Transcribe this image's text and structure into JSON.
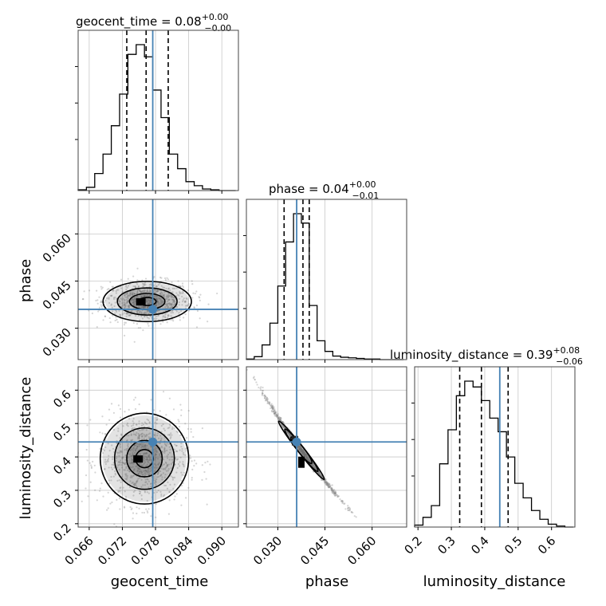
{
  "chart_data": {
    "type": "corner",
    "parameters": [
      "geocent_time",
      "phase",
      "luminosity_distance"
    ],
    "titles": [
      {
        "param": "geocent_time",
        "prefix": "geocent_time = 0.08",
        "sup": "+0.00",
        "sub": "−0.00"
      },
      {
        "param": "phase",
        "prefix": "phase = 0.04",
        "sup": "+0.00",
        "sub": "−0.01"
      },
      {
        "param": "luminosity_distance",
        "prefix": "luminosity_distance = 0.39",
        "sup": "+0.08",
        "sub": "−0.06"
      }
    ],
    "ranges": {
      "geocent_time": [
        0.064,
        0.093
      ],
      "phase": [
        0.02,
        0.071
      ],
      "luminosity_distance": [
        0.19,
        0.67
      ]
    },
    "ticks": {
      "geocent_time": [
        0.066,
        0.072,
        0.078,
        0.084,
        0.09
      ],
      "phase": [
        0.03,
        0.045,
        0.06
      ],
      "luminosity_distance": [
        0.2,
        0.3,
        0.4,
        0.5,
        0.6
      ]
    },
    "tick_labels": {
      "geocent_time": [
        "0.066",
        "0.072",
        "0.078",
        "0.084",
        "0.090"
      ],
      "phase": [
        "0.030",
        "0.045",
        "0.060"
      ],
      "luminosity_distance": [
        "0.2",
        "0.3",
        "0.4",
        "0.5",
        "0.6"
      ]
    },
    "injection": {
      "geocent_time": 0.0775,
      "phase": 0.036,
      "luminosity_distance": 0.445
    },
    "quantiles": {
      "geocent_time": [
        0.0728,
        0.0763,
        0.0803
      ],
      "phase": [
        0.032,
        0.038,
        0.04
      ],
      "luminosity_distance": [
        0.325,
        0.39,
        0.47
      ]
    },
    "histograms": {
      "geocent_time": {
        "edges": [
          0.064,
          0.0655,
          0.067,
          0.0685,
          0.07,
          0.0715,
          0.073,
          0.0745,
          0.076,
          0.0775,
          0.079,
          0.0805,
          0.082,
          0.0835,
          0.085,
          0.0865,
          0.088,
          0.0895,
          0.091,
          0.0925
        ],
        "counts": [
          1,
          4,
          21,
          45,
          80,
          119,
          168,
          180,
          165,
          124,
          90,
          45,
          27,
          11,
          6,
          2,
          1,
          0,
          0
        ]
      },
      "phase": {
        "edges": [
          0.02,
          0.0225,
          0.025,
          0.0275,
          0.03,
          0.0325,
          0.035,
          0.0375,
          0.04,
          0.0425,
          0.045,
          0.0475,
          0.05,
          0.0525,
          0.055,
          0.0575,
          0.06,
          0.0625,
          0.065,
          0.0675,
          0.07
        ],
        "counts": [
          1,
          5,
          25,
          62,
          125,
          200,
          248,
          232,
          92,
          32,
          14,
          6,
          4,
          3,
          2,
          1,
          1,
          0,
          0,
          0
        ]
      },
      "luminosity_distance": {
        "edges": [
          0.19,
          0.215,
          0.24,
          0.265,
          0.29,
          0.315,
          0.34,
          0.365,
          0.39,
          0.415,
          0.44,
          0.465,
          0.49,
          0.515,
          0.54,
          0.565,
          0.59,
          0.615,
          0.64,
          0.665
        ],
        "counts": [
          2,
          10,
          22,
          65,
          100,
          135,
          150,
          144,
          130,
          112,
          98,
          72,
          45,
          30,
          17,
          8,
          3,
          1,
          0
        ]
      }
    },
    "pairs": [
      {
        "x": "geocent_time",
        "y": "phase",
        "center": [
          0.0765,
          0.0385
        ],
        "spread": [
          0.004,
          0.0032
        ],
        "rho": 0.0
      },
      {
        "x": "geocent_time",
        "y": "luminosity_distance",
        "center": [
          0.076,
          0.395
        ],
        "spread": [
          0.004,
          0.068
        ],
        "rho": 0.05
      },
      {
        "x": "phase",
        "y": "luminosity_distance",
        "center": [
          0.0375,
          0.42
        ],
        "spread": [
          0.0062,
          0.082
        ],
        "rho": -0.97
      }
    ],
    "axis_labels": {
      "x": [
        "geocent_time",
        "phase",
        "luminosity_distance"
      ],
      "y": [
        "",
        "phase",
        "luminosity_distance"
      ]
    },
    "grid": true,
    "colors": {
      "injection": "#4682b4",
      "hist": "#000000",
      "points": "#888888",
      "grid": "#c8c8c8"
    }
  }
}
